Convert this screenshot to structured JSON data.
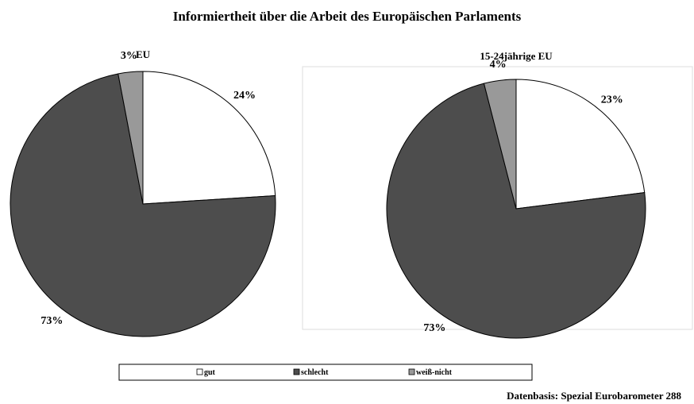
{
  "title": "Informiertheit über die Arbeit des Europäischen Parlaments",
  "chart_data": [
    {
      "type": "pie",
      "title": "EU",
      "categories": [
        "gut",
        "schlecht",
        "weiß-nicht"
      ],
      "colors": [
        "#ffffff",
        "#4d4d4d",
        "#999999"
      ],
      "values": [
        24,
        73,
        3
      ],
      "value_labels": [
        "24%",
        "73%",
        "3%"
      ]
    },
    {
      "type": "pie",
      "title": "15-24jährige EU",
      "values": [
        23,
        73,
        4
      ],
      "value_labels": [
        "23%",
        "73%",
        "4%"
      ]
    }
  ],
  "source": "Datenbasis: Spezial Eurobarometer 288"
}
